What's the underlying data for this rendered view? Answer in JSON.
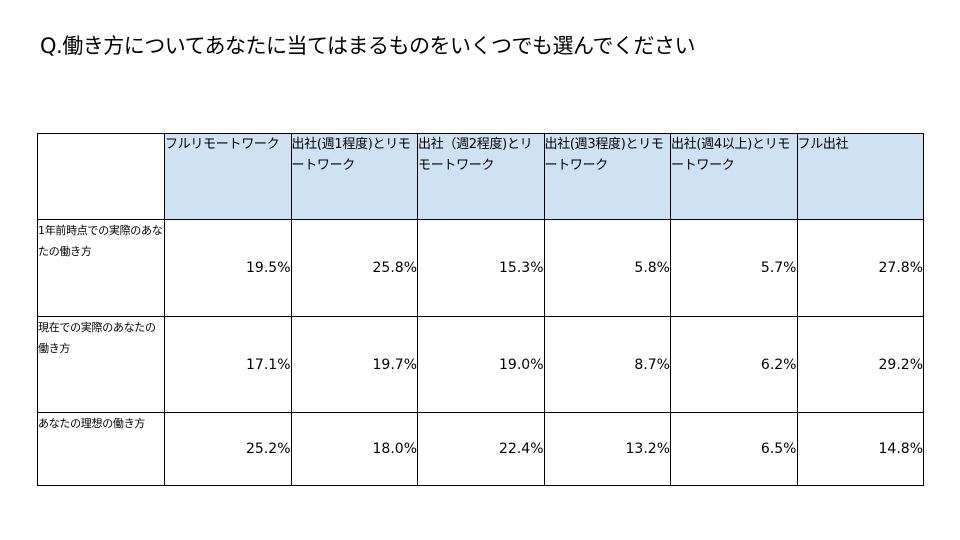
{
  "title": "Q.働き方についてあなたに当てはまるものをいくつでも選んでください",
  "table": {
    "corner": "",
    "columns": [
      "フルリモートワーク",
      "出社(週1程度)とリモートワーク",
      "出社（週2程度)とリモートワーク",
      "出社(週3程度)とリモートワーク",
      "出社(週4以上)とリモートワーク",
      "フル出社"
    ],
    "rows": [
      {
        "label": "1年前時点での実際のあなたの働き方",
        "values": [
          "19.5%",
          "25.8%",
          "15.3%",
          "5.8%",
          "5.7%",
          "27.8%"
        ]
      },
      {
        "label": "現在での実際のあなたの働き方",
        "values": [
          "17.1%",
          "19.7%",
          "19.0%",
          "8.7%",
          "6.2%",
          "29.2%"
        ]
      },
      {
        "label": "あなたの理想の働き方",
        "values": [
          "25.2%",
          "18.0%",
          "22.4%",
          "13.2%",
          "6.5%",
          "14.8%"
        ]
      }
    ]
  },
  "colors": {
    "header_background": "#cfe2f3",
    "border": "#000000",
    "text": "#000000"
  }
}
